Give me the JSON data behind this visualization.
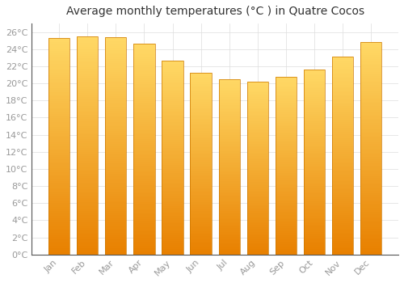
{
  "title": "Average monthly temperatures (°C ) in Quatre Cocos",
  "months": [
    "Jan",
    "Feb",
    "Mar",
    "Apr",
    "May",
    "Jun",
    "Jul",
    "Aug",
    "Sep",
    "Oct",
    "Nov",
    "Dec"
  ],
  "values": [
    25.3,
    25.5,
    25.4,
    24.6,
    22.7,
    21.2,
    20.5,
    20.2,
    20.8,
    21.6,
    23.1,
    24.8
  ],
  "bar_color_top": "#FFD966",
  "bar_color_bottom": "#E88000",
  "bar_edge_color": "#CC7700",
  "background_color": "#FFFFFF",
  "grid_color": "#DDDDDD",
  "ylim": [
    0,
    27
  ],
  "yticks": [
    0,
    2,
    4,
    6,
    8,
    10,
    12,
    14,
    16,
    18,
    20,
    22,
    24,
    26
  ],
  "title_fontsize": 10,
  "tick_fontsize": 8,
  "text_color": "#999999"
}
